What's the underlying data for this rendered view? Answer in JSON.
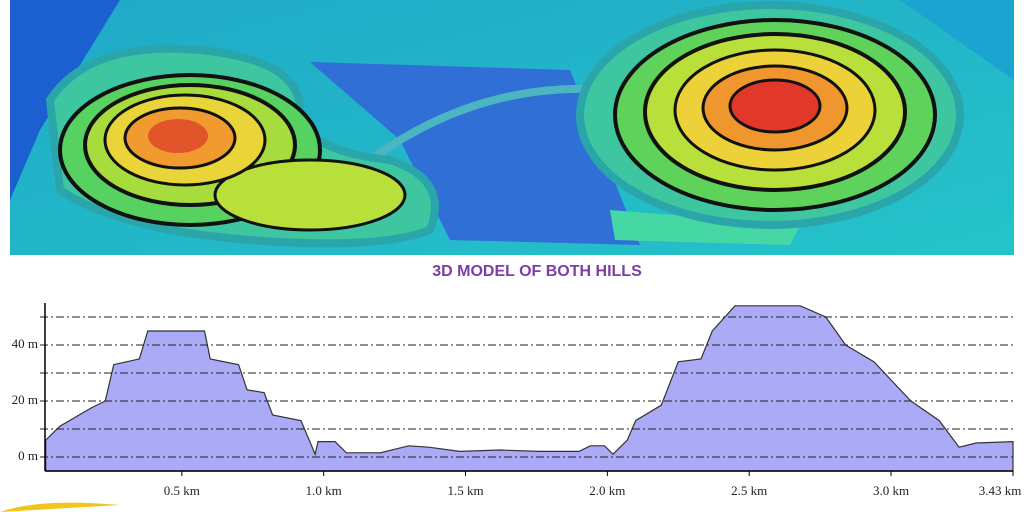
{
  "chart_data": {
    "type": "area",
    "title": "3D MODEL OF BOTH HILLS",
    "x": [
      0.02,
      0.07,
      0.18,
      0.23,
      0.26,
      0.35,
      0.38,
      0.58,
      0.6,
      0.7,
      0.73,
      0.79,
      0.82,
      0.92,
      0.97,
      0.98,
      1.04,
      1.08,
      1.2,
      1.3,
      1.37,
      1.48,
      1.62,
      1.76,
      1.9,
      1.94,
      1.99,
      2.02,
      2.07,
      2.1,
      2.19,
      2.25,
      2.33,
      2.37,
      2.45,
      2.68,
      2.77,
      2.84,
      2.94,
      3.0,
      3.07,
      3.17,
      3.24,
      3.3,
      3.43
    ],
    "values": [
      6,
      11,
      17.5,
      20,
      33,
      35,
      45,
      45,
      35,
      33,
      24,
      23,
      15,
      13,
      1,
      5.5,
      5.5,
      1.5,
      1.5,
      4,
      3.5,
      2,
      2.5,
      2,
      2,
      4,
      4,
      1,
      6,
      13,
      18.5,
      34,
      35,
      45,
      54,
      54,
      50,
      40,
      34,
      27.5,
      20,
      13,
      3.5,
      5,
      5.5
    ],
    "color": "#aaaaf6",
    "xlim": [
      0,
      3.43
    ],
    "ylim": [
      -5,
      55
    ],
    "xticks": [
      {
        "value": 0.5,
        "label": "0.5 km"
      },
      {
        "value": 1.0,
        "label": "1.0 km"
      },
      {
        "value": 1.5,
        "label": "1.5 km"
      },
      {
        "value": 2.0,
        "label": "2.0 km"
      },
      {
        "value": 2.5,
        "label": "2.5 km"
      },
      {
        "value": 3.0,
        "label": "3.0 km"
      },
      {
        "value": 3.43,
        "label": "3.43 km"
      }
    ],
    "yticks": [
      {
        "value": 0,
        "label": "0 m"
      },
      {
        "value": 20,
        "label": "20 m"
      },
      {
        "value": 40,
        "label": "40 m"
      }
    ],
    "minor_yticks": [
      10,
      30,
      50
    ],
    "grid": true
  }
}
